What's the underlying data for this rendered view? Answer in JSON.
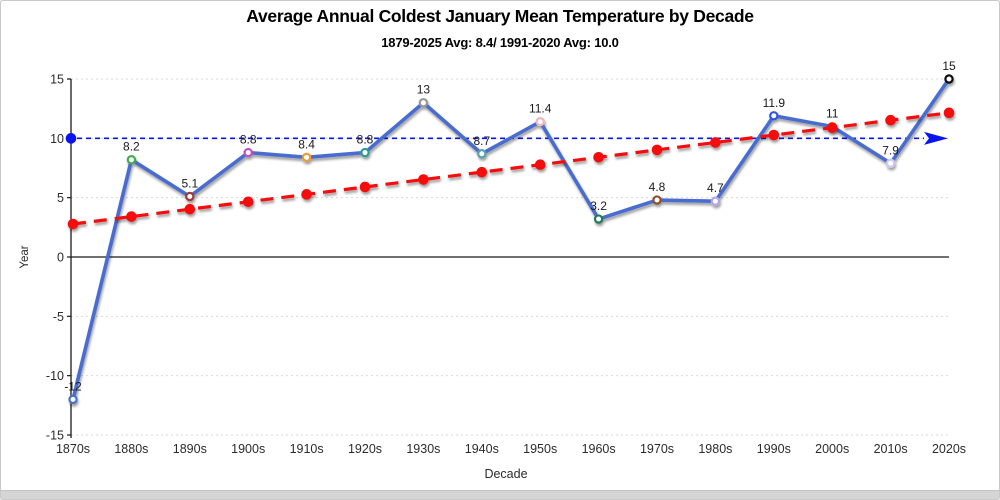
{
  "title": "Average Annual Coldest January Mean Temperature by Decade",
  "subtitle": "1879-2025 Avg: 8.4/ 1991-2020 Avg: 10.0",
  "chart_data": {
    "type": "line",
    "title": "Average Annual Coldest January Mean Temperature by Decade",
    "subtitle": "1879-2025 Avg: 8.4/ 1991-2020 Avg: 10.0",
    "xlabel": "Decade",
    "ylabel": "Year",
    "ylim": [
      -15,
      15
    ],
    "yticks": [
      15,
      10,
      5,
      0,
      -5,
      -10,
      -15
    ],
    "grid": "horizontal-dotted",
    "legend": "none",
    "categories": [
      "1870s",
      "1880s",
      "1890s",
      "1900s",
      "1910s",
      "1920s",
      "1930s",
      "1940s",
      "1950s",
      "1960s",
      "1970s",
      "1980s",
      "1990s",
      "2000s",
      "2010s",
      "2020s"
    ],
    "series": [
      {
        "name": "avg-coldest-january-mean-temperature",
        "values": [
          -12,
          8.2,
          5.1,
          8.8,
          8.4,
          8.8,
          13,
          8.7,
          11.4,
          3.2,
          4.8,
          4.7,
          11.9,
          11,
          7.9,
          15
        ],
        "labels": [
          "-12",
          "8.2",
          "5.1",
          "8.8",
          "8.4",
          "8.8",
          "13",
          "8.7",
          "11.4",
          "3.2",
          "4.8",
          "4.7",
          "11.9",
          "11",
          "7.9",
          "15"
        ],
        "line_color": "#4a6cd0",
        "marker_fill": "#ffffff",
        "point_colors": [
          "#4472c4",
          "#3fae49",
          "#9e3a38",
          "#bf51c4",
          "#ed9c33",
          "#2a9d8f",
          "#9a9a9a",
          "#54a3ad",
          "#f2b4bc",
          "#217a5a",
          "#8d4f2a",
          "#b3a5e3",
          "#2f55e0",
          "#e3c93e",
          "#cfc8ef",
          "#111111"
        ]
      },
      {
        "name": "linear-trend-1879-2025",
        "type": "trend",
        "start_value": 2.78,
        "end_value": 12.15,
        "color": "#f50f0f",
        "style": "dashed-with-dots"
      },
      {
        "name": "reference-1991-2020-average",
        "type": "reference",
        "value": 10.0,
        "color": "#0a14f0",
        "style": "dashed-arrow-right-with-start-dot"
      }
    ]
  },
  "colors": {
    "gridline": "#d9d9d9",
    "axis": "#1a1a1a",
    "tick_text": "#2b2b2b",
    "data_label": "#1a1a1a",
    "series_blue": "#4a6cd0",
    "trend_red": "#f50f0f",
    "reference_blue": "#0a14f0",
    "frame_border": "#c9c9c9",
    "bottom_bar": "#d5d5d5"
  }
}
